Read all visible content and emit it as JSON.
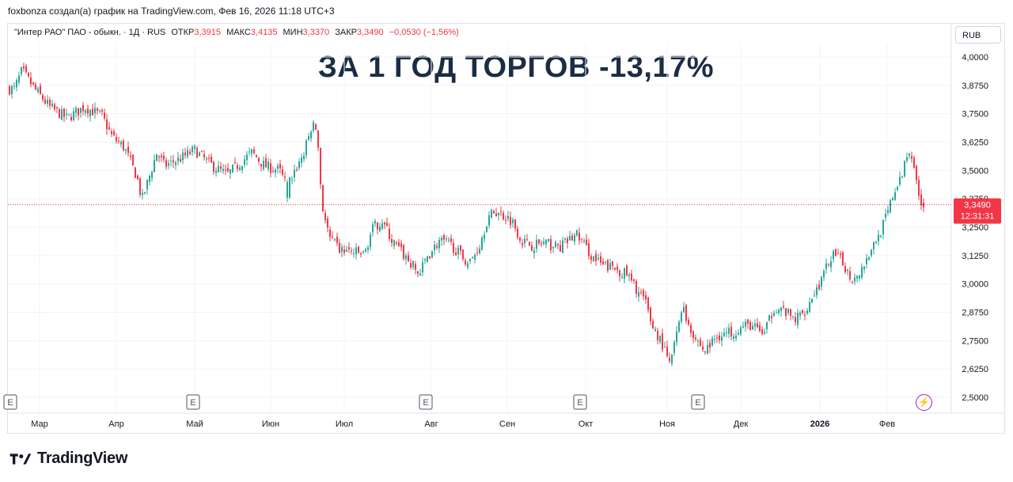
{
  "caption": "foxbonza создал(а) график на TradingView.com, Фев 16, 2026 11:18 UTC+3",
  "legend": {
    "symbol": "\"Интер РАО\" ПАО - обыкн. · 1Д · RUS",
    "open_label": "ОТКР",
    "open": "3,3915",
    "high_label": "МАКС",
    "high": "3,4135",
    "low_label": "МИН",
    "low": "3,3370",
    "close_label": "ЗАКР",
    "close": "3,3490",
    "change": "−0,0530 (−1,56%)"
  },
  "headline": "ЗА 1 ГОД ТОРГОВ -13,17%",
  "currency": "RUB",
  "price_tag": {
    "price": "3,3490",
    "countdown": "12:31:31"
  },
  "brand": "TradingView",
  "colors": {
    "up": "#26a69a",
    "down": "#f23645",
    "grid": "#f0f3fa",
    "text": "#131722"
  },
  "chart_data": {
    "type": "candlestick",
    "title": "ЗА 1 ГОД ТОРГОВ -13,17%",
    "x_ticks": [
      "Мар",
      "Апр",
      "Май",
      "Июн",
      "Июл",
      "Авг",
      "Сен",
      "Окт",
      "Ноя",
      "Дек",
      "2026",
      "Фев"
    ],
    "y_ticks": [
      "4,0000",
      "3,8750",
      "3,7500",
      "3,6250",
      "3,5000",
      "3,3750",
      "3,2500",
      "3,1250",
      "3,0000",
      "2,8750",
      "2,7500",
      "2,6250",
      "2,5000"
    ],
    "ylim": [
      2.5,
      4.0
    ],
    "last_price": 3.349,
    "event_markers": [
      "E",
      "E",
      "E",
      "E",
      "E"
    ],
    "close_series": [
      {
        "date": "2025-02-17",
        "close": 3.86
      },
      {
        "date": "2025-02-20",
        "close": 3.94
      },
      {
        "date": "2025-02-25",
        "close": 3.86
      },
      {
        "date": "2025-03-03",
        "close": 3.78
      },
      {
        "date": "2025-03-10",
        "close": 3.73
      },
      {
        "date": "2025-03-17",
        "close": 3.78
      },
      {
        "date": "2025-03-24",
        "close": 3.74
      },
      {
        "date": "2025-03-28",
        "close": 3.65
      },
      {
        "date": "2025-04-02",
        "close": 3.6
      },
      {
        "date": "2025-04-07",
        "close": 3.47
      },
      {
        "date": "2025-04-09",
        "close": 3.37
      },
      {
        "date": "2025-04-11",
        "close": 3.44
      },
      {
        "date": "2025-04-15",
        "close": 3.58
      },
      {
        "date": "2025-04-18",
        "close": 3.52
      },
      {
        "date": "2025-04-24",
        "close": 3.55
      },
      {
        "date": "2025-04-30",
        "close": 3.59
      },
      {
        "date": "2025-05-06",
        "close": 3.53
      },
      {
        "date": "2025-05-13",
        "close": 3.48
      },
      {
        "date": "2025-05-19",
        "close": 3.54
      },
      {
        "date": "2025-05-23",
        "close": 3.58
      },
      {
        "date": "2025-05-28",
        "close": 3.52
      },
      {
        "date": "2025-06-03",
        "close": 3.5
      },
      {
        "date": "2025-06-06",
        "close": 3.43
      },
      {
        "date": "2025-06-10",
        "close": 3.52
      },
      {
        "date": "2025-06-13",
        "close": 3.58
      },
      {
        "date": "2025-06-16",
        "close": 3.7
      },
      {
        "date": "2025-06-18",
        "close": 3.68
      },
      {
        "date": "2025-06-20",
        "close": 3.35
      },
      {
        "date": "2025-06-23",
        "close": 3.2
      },
      {
        "date": "2025-06-27",
        "close": 3.15
      },
      {
        "date": "2025-07-02",
        "close": 3.14
      },
      {
        "date": "2025-07-07",
        "close": 3.13
      },
      {
        "date": "2025-07-10",
        "close": 3.24
      },
      {
        "date": "2025-07-14",
        "close": 3.28
      },
      {
        "date": "2025-07-18",
        "close": 3.19
      },
      {
        "date": "2025-07-24",
        "close": 3.11
      },
      {
        "date": "2025-07-29",
        "close": 3.04
      },
      {
        "date": "2025-08-01",
        "close": 3.12
      },
      {
        "date": "2025-08-06",
        "close": 3.19
      },
      {
        "date": "2025-08-11",
        "close": 3.17
      },
      {
        "date": "2025-08-14",
        "close": 3.13
      },
      {
        "date": "2025-08-18",
        "close": 3.09
      },
      {
        "date": "2025-08-22",
        "close": 3.17
      },
      {
        "date": "2025-08-25",
        "close": 3.28
      },
      {
        "date": "2025-08-28",
        "close": 3.32
      },
      {
        "date": "2025-09-01",
        "close": 3.3
      },
      {
        "date": "2025-09-04",
        "close": 3.28
      },
      {
        "date": "2025-09-08",
        "close": 3.19
      },
      {
        "date": "2025-09-12",
        "close": 3.17
      },
      {
        "date": "2025-09-17",
        "close": 3.18
      },
      {
        "date": "2025-09-23",
        "close": 3.16
      },
      {
        "date": "2025-09-30",
        "close": 3.22
      },
      {
        "date": "2025-10-06",
        "close": 3.12
      },
      {
        "date": "2025-10-10",
        "close": 3.08
      },
      {
        "date": "2025-10-15",
        "close": 3.07
      },
      {
        "date": "2025-10-20",
        "close": 3.04
      },
      {
        "date": "2025-10-23",
        "close": 2.99
      },
      {
        "date": "2025-10-27",
        "close": 2.93
      },
      {
        "date": "2025-10-30",
        "close": 2.82
      },
      {
        "date": "2025-11-03",
        "close": 2.74
      },
      {
        "date": "2025-11-06",
        "close": 2.64
      },
      {
        "date": "2025-11-09",
        "close": 2.78
      },
      {
        "date": "2025-11-11",
        "close": 2.91
      },
      {
        "date": "2025-11-13",
        "close": 2.84
      },
      {
        "date": "2025-11-16",
        "close": 2.77
      },
      {
        "date": "2025-11-20",
        "close": 2.7
      },
      {
        "date": "2025-11-25",
        "close": 2.77
      },
      {
        "date": "2025-12-01",
        "close": 2.79
      },
      {
        "date": "2025-12-08",
        "close": 2.82
      },
      {
        "date": "2025-12-14",
        "close": 2.78
      },
      {
        "date": "2025-12-18",
        "close": 2.9
      },
      {
        "date": "2025-12-22",
        "close": 2.88
      },
      {
        "date": "2025-12-26",
        "close": 2.84
      },
      {
        "date": "2025-12-30",
        "close": 2.88
      },
      {
        "date": "2026-01-06",
        "close": 3.02
      },
      {
        "date": "2026-01-10",
        "close": 3.13
      },
      {
        "date": "2026-01-14",
        "close": 3.1
      },
      {
        "date": "2026-01-18",
        "close": 3.02
      },
      {
        "date": "2026-01-22",
        "close": 3.07
      },
      {
        "date": "2026-01-26",
        "close": 3.16
      },
      {
        "date": "2026-01-29",
        "close": 3.22
      },
      {
        "date": "2026-02-01",
        "close": 3.3
      },
      {
        "date": "2026-02-04",
        "close": 3.41
      },
      {
        "date": "2026-02-06",
        "close": 3.44
      },
      {
        "date": "2026-02-08",
        "close": 3.53
      },
      {
        "date": "2026-02-10",
        "close": 3.6
      },
      {
        "date": "2026-02-12",
        "close": 3.52
      },
      {
        "date": "2026-02-13",
        "close": 3.42
      },
      {
        "date": "2026-02-14",
        "close": 3.38
      },
      {
        "date": "2026-02-16",
        "close": 3.35
      }
    ]
  }
}
